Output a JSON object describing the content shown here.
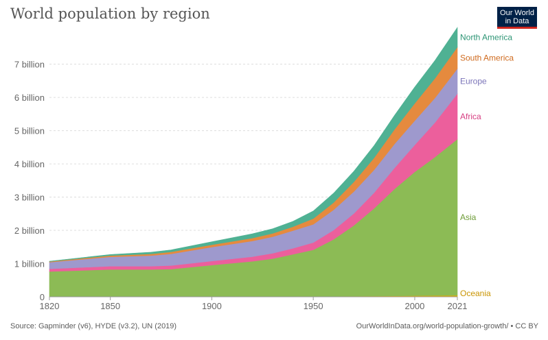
{
  "header": {
    "title": "World population by region"
  },
  "logo": {
    "line1": "Our World",
    "line2": "in Data"
  },
  "footer": {
    "source": "Source: Gapminder (v6), HYDE (v3.2), UN (2019)",
    "credit": "OurWorldInData.org/world-population-growth/ • CC BY"
  },
  "chart_data": {
    "type": "area",
    "stacked": true,
    "x": [
      1820,
      1850,
      1870,
      1880,
      1900,
      1920,
      1930,
      1940,
      1950,
      1960,
      1970,
      1980,
      1990,
      2000,
      2010,
      2021
    ],
    "series": [
      {
        "name": "Oceania",
        "color": "#e6ad00",
        "values": [
          0.002,
          0.002,
          0.002,
          0.003,
          0.006,
          0.008,
          0.009,
          0.011,
          0.013,
          0.016,
          0.019,
          0.023,
          0.027,
          0.031,
          0.037,
          0.044
        ]
      },
      {
        "name": "Asia",
        "color": "#8cbb55",
        "values": [
          0.76,
          0.82,
          0.82,
          0.83,
          0.95,
          1.06,
          1.14,
          1.27,
          1.4,
          1.71,
          2.13,
          2.64,
          3.22,
          3.73,
          4.17,
          4.7
        ]
      },
      {
        "name": "Africa",
        "color": "#ec5f9c",
        "values": [
          0.08,
          0.1,
          0.1,
          0.11,
          0.12,
          0.14,
          0.16,
          0.18,
          0.22,
          0.28,
          0.36,
          0.47,
          0.63,
          0.81,
          1.04,
          1.37
        ]
      },
      {
        "name": "Europe",
        "color": "#9e99cd",
        "values": [
          0.2,
          0.28,
          0.32,
          0.35,
          0.42,
          0.47,
          0.5,
          0.53,
          0.55,
          0.61,
          0.66,
          0.69,
          0.72,
          0.73,
          0.74,
          0.75
        ]
      },
      {
        "name": "South America",
        "color": "#e58a3e",
        "values": [
          0.02,
          0.04,
          0.05,
          0.06,
          0.07,
          0.09,
          0.1,
          0.12,
          0.17,
          0.22,
          0.29,
          0.36,
          0.44,
          0.52,
          0.59,
          0.65
        ]
      },
      {
        "name": "North America",
        "color": "#4fb193",
        "values": [
          0.01,
          0.03,
          0.05,
          0.06,
          0.09,
          0.13,
          0.14,
          0.16,
          0.23,
          0.28,
          0.32,
          0.37,
          0.42,
          0.49,
          0.54,
          0.59
        ]
      }
    ],
    "xticks": [
      "1820",
      "1850",
      "1900",
      "1950",
      "2000",
      "2021"
    ],
    "yticks": [
      "0",
      "1 billion",
      "2 billion",
      "3 billion",
      "4 billion",
      "5 billion",
      "6 billion",
      "7 billion"
    ],
    "ylim": [
      0,
      7.9
    ],
    "xlim": [
      1820,
      2021
    ],
    "grid": true,
    "legend": "right, inline labels"
  }
}
